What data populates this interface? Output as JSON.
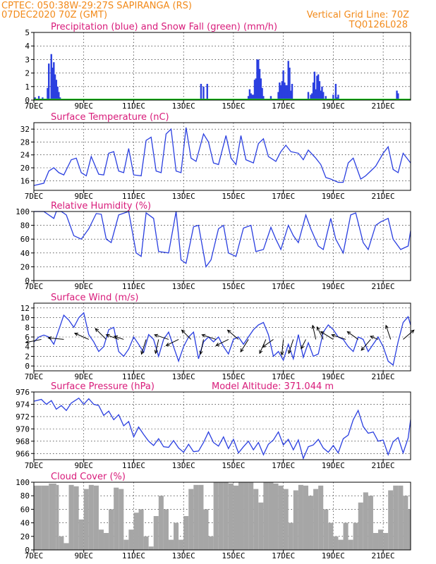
{
  "header": {
    "station": "CPTEC:  050:38W-29:27S  SAPIRANGA (RS)",
    "init": "07DEC2020 70Z (GMT)",
    "vgrid": "Vertical Grid Line: 70Z",
    "code": "TQ0126L028"
  },
  "colors": {
    "line": "#2a3fe0",
    "bar": "#2a3fe0",
    "snow": "#19c219",
    "cloud": "#a6a6a6",
    "title": "#d81b7a",
    "header": "#f28a1a"
  },
  "x_axis": {
    "labels": [
      "7DEC",
      "9DEC",
      "11DEC",
      "13DEC",
      "15DEC",
      "17DEC",
      "19DEC",
      "21DEC"
    ],
    "label_days": [
      0,
      2,
      4,
      6,
      8,
      10,
      12,
      14
    ],
    "range_days": [
      0,
      15.1
    ]
  },
  "chart_data": [
    {
      "type": "bar",
      "title": "Precipitation (blue) and Snow Fall (green) (mm/h)",
      "ylim": [
        0,
        5
      ],
      "yticks": [
        "0",
        "1",
        "2",
        "3",
        "4",
        "5"
      ],
      "series": [
        {
          "name": "Precipitation",
          "x_days": [
            0.05,
            0.1,
            0.2,
            0.35,
            0.55,
            0.6,
            0.7,
            0.75,
            0.8,
            0.85,
            0.9,
            0.95,
            1.0,
            1.05,
            6.7,
            6.8,
            6.95,
            8.6,
            8.65,
            8.7,
            8.75,
            8.8,
            8.85,
            8.9,
            8.95,
            9.0,
            9.05,
            9.1,
            9.15,
            9.2,
            9.5,
            9.8,
            9.85,
            9.9,
            9.95,
            10.0,
            10.05,
            10.1,
            10.15,
            10.2,
            10.25,
            10.3,
            10.35,
            11.0,
            11.1,
            11.15,
            11.2,
            11.25,
            11.3,
            11.35,
            11.4,
            11.45,
            11.5,
            11.55,
            11.6,
            11.7,
            12.0,
            12.1,
            12.15,
            12.2,
            14.55,
            14.6
          ],
          "values": [
            0.2,
            0.1,
            0.3,
            0.2,
            0.9,
            2.7,
            3.4,
            2.4,
            2.8,
            1.9,
            1.5,
            1.0,
            0.6,
            0.2,
            1.2,
            1.0,
            1.2,
            0.3,
            0.8,
            0.5,
            0.4,
            0.4,
            1.5,
            1.6,
            3.0,
            3.0,
            2.3,
            1.6,
            0.9,
            0.3,
            0.3,
            0.6,
            1.3,
            1.1,
            1.4,
            2.2,
            1.3,
            1.1,
            1.1,
            2.9,
            2.4,
            0.7,
            1.2,
            0.6,
            0.4,
            0.5,
            1.3,
            2.1,
            0.8,
            1.8,
            1.9,
            1.4,
            0.7,
            1.0,
            0.6,
            0.3,
            0.4,
            1.2,
            0.2,
            0.4,
            0.7,
            0.5
          ]
        },
        {
          "name": "Snow Fall",
          "x_days": [
            0,
            15.1
          ],
          "values": [
            0,
            0
          ]
        }
      ]
    },
    {
      "type": "line",
      "title": "Surface Temperature (nC)",
      "ylim": [
        13,
        34
      ],
      "yticks": [
        16,
        20,
        24,
        28,
        32
      ],
      "x_days": [
        0,
        0.4,
        0.6,
        0.8,
        1.0,
        1.2,
        1.5,
        1.7,
        1.9,
        2.1,
        2.3,
        2.6,
        2.8,
        3.0,
        3.2,
        3.4,
        3.6,
        3.8,
        4.0,
        4.3,
        4.5,
        4.7,
        4.9,
        5.1,
        5.3,
        5.5,
        5.7,
        5.9,
        6.1,
        6.3,
        6.5,
        6.8,
        7.0,
        7.2,
        7.4,
        7.7,
        7.9,
        8.1,
        8.3,
        8.5,
        8.8,
        9.0,
        9.2,
        9.4,
        9.7,
        9.9,
        10.1,
        10.3,
        10.6,
        10.8,
        11.0,
        11.3,
        11.5,
        11.7,
        11.9,
        12.2,
        12.4,
        12.6,
        12.8,
        13.1,
        13.3,
        13.5,
        13.7,
        14.0,
        14.2,
        14.4,
        14.6,
        14.8,
        15.1
      ],
      "y": [
        14.5,
        15.2,
        19.0,
        20.0,
        18.5,
        17.8,
        22.5,
        23.0,
        18.5,
        17.5,
        23.5,
        18.0,
        17.8,
        24.5,
        25.0,
        19.0,
        18.5,
        26.0,
        17.8,
        17.5,
        28.5,
        29.5,
        19.0,
        18.5,
        30.5,
        32.0,
        19.0,
        18.5,
        32.5,
        23.0,
        22.0,
        30.5,
        28.0,
        21.5,
        21.0,
        30.0,
        23.0,
        21.0,
        30.0,
        22.5,
        21.5,
        27.5,
        29.0,
        23.5,
        22.0,
        25.0,
        27.0,
        25.0,
        24.5,
        22.5,
        25.5,
        23.0,
        21.0,
        17.0,
        16.5,
        15.5,
        15.5,
        21.5,
        23.0,
        16.5,
        17.5,
        19.0,
        20.5,
        24.5,
        26.5,
        19.5,
        18.5,
        24.5,
        21.5
      ]
    },
    {
      "type": "line",
      "title": "Relative Humidity (%)",
      "ylim": [
        0,
        100
      ],
      "yticks": [
        0,
        20,
        40,
        60,
        80,
        100
      ],
      "x_days": [
        0,
        0.4,
        0.8,
        0.9,
        1.1,
        1.3,
        1.6,
        1.9,
        2.2,
        2.5,
        2.7,
        2.9,
        3.1,
        3.4,
        3.8,
        4.1,
        4.3,
        4.5,
        4.8,
        5.0,
        5.4,
        5.7,
        5.9,
        6.1,
        6.4,
        6.6,
        6.9,
        7.1,
        7.4,
        7.6,
        7.8,
        8.1,
        8.4,
        8.7,
        8.9,
        9.2,
        9.5,
        9.7,
        9.9,
        10.2,
        10.4,
        10.6,
        10.9,
        11.1,
        11.4,
        11.6,
        11.9,
        12.1,
        12.4,
        12.7,
        12.9,
        13.2,
        13.4,
        13.7,
        13.9,
        14.2,
        14.4,
        14.7,
        15.0,
        15.1
      ],
      "y": [
        100,
        100,
        90,
        100,
        100,
        95,
        65,
        60,
        75,
        97,
        96,
        60,
        55,
        95,
        100,
        40,
        35,
        98,
        90,
        42,
        40,
        100,
        30,
        25,
        78,
        80,
        20,
        30,
        75,
        80,
        40,
        35,
        76,
        80,
        42,
        45,
        77,
        60,
        45,
        80,
        65,
        55,
        95,
        75,
        50,
        45,
        90,
        60,
        40,
        95,
        98,
        55,
        45,
        80,
        85,
        90,
        60,
        45,
        50,
        72
      ]
    },
    {
      "type": "line",
      "title": "Surface Wind (m/s)",
      "ylim": [
        -1,
        13
      ],
      "yticks": [
        0,
        2,
        4,
        6,
        8,
        10,
        12
      ],
      "x_days": [
        0,
        0.2,
        0.4,
        0.6,
        0.8,
        1.0,
        1.2,
        1.4,
        1.6,
        1.8,
        2.0,
        2.2,
        2.4,
        2.6,
        2.8,
        3.0,
        3.2,
        3.4,
        3.6,
        3.8,
        4.0,
        4.2,
        4.4,
        4.6,
        4.8,
        5.0,
        5.2,
        5.4,
        5.6,
        5.8,
        6.0,
        6.2,
        6.4,
        6.6,
        6.8,
        7.0,
        7.2,
        7.4,
        7.6,
        7.8,
        8.0,
        8.2,
        8.4,
        8.6,
        8.8,
        9.0,
        9.2,
        9.4,
        9.6,
        9.8,
        10.0,
        10.2,
        10.4,
        10.6,
        10.8,
        11.0,
        11.2,
        11.4,
        11.6,
        11.8,
        12.0,
        12.2,
        12.4,
        12.6,
        12.8,
        13.0,
        13.2,
        13.4,
        13.6,
        13.8,
        14.0,
        14.2,
        14.4,
        14.6,
        14.8,
        15.0,
        15.1
      ],
      "y": [
        5.0,
        6.0,
        6.4,
        6.0,
        4.5,
        7.5,
        10.5,
        9.5,
        8.0,
        10.0,
        11.0,
        6.5,
        5.0,
        3.0,
        4.0,
        7.5,
        8.0,
        3.0,
        2.0,
        3.5,
        6.0,
        4.5,
        2.8,
        6.5,
        5.5,
        2.0,
        5.5,
        7.0,
        4.0,
        1.0,
        4.0,
        6.0,
        7.0,
        1.5,
        5.0,
        6.0,
        5.0,
        6.0,
        4.0,
        2.5,
        5.5,
        6.0,
        4.5,
        6.0,
        7.5,
        8.5,
        9.0,
        6.5,
        2.0,
        3.0,
        1.2,
        4.5,
        1.5,
        6.5,
        1.8,
        4.8,
        2.0,
        2.5,
        7.0,
        8.5,
        7.5,
        6.0,
        5.5,
        4.0,
        3.0,
        6.0,
        5.5,
        3.0,
        4.5,
        6.0,
        4.0,
        1.0,
        0.2,
        5.0,
        9.0,
        10.2,
        8.5
      ],
      "vectors": {
        "x_days": [
          0.3,
          1.2,
          2.2,
          2.9,
          3.4,
          3.6,
          4.5,
          5.0,
          5.4,
          5.8,
          6.3,
          6.8,
          7.3,
          7.8,
          8.2,
          8.6,
          9.3,
          9.6,
          10.0,
          10.4,
          10.9,
          11.3,
          11.6,
          12.0,
          12.5,
          13.0,
          13.5,
          13.8,
          14.3,
          14.8
        ],
        "u": [
          -1,
          -1,
          -0.9,
          -0.7,
          -0.8,
          -0.6,
          -0.3,
          -0.2,
          -0.9,
          -0.8,
          -0.6,
          -0.2,
          -0.9,
          -0.8,
          -0.7,
          -0.5,
          -0.4,
          -0.7,
          -0.1,
          -0.3,
          -0.3,
          -0.2,
          -0.4,
          -0.8,
          -0.9,
          -0.7,
          -0.6,
          -0.5,
          -0.3,
          0.7
        ],
        "v": [
          -0.2,
          0.1,
          0.4,
          0.7,
          0.3,
          0.2,
          -0.95,
          -0.9,
          0.3,
          -0.4,
          0.6,
          -0.95,
          0.3,
          -0.4,
          0.6,
          -0.8,
          -0.9,
          -0.5,
          -1,
          -0.9,
          -0.6,
          0.9,
          0.8,
          0.5,
          0.3,
          0.5,
          -0.7,
          0.2,
          0.9,
          0.6
        ]
      }
    },
    {
      "type": "line",
      "title": "Surface Pressure (hPa)",
      "annotation": "Model Altitude: 371.044 m",
      "ylim": [
        965,
        976
      ],
      "yticks": [
        966,
        968,
        970,
        972,
        974,
        976
      ],
      "x_days": [
        0,
        0.3,
        0.5,
        0.7,
        0.9,
        1.1,
        1.3,
        1.5,
        1.8,
        2.0,
        2.2,
        2.4,
        2.6,
        2.8,
        3.0,
        3.2,
        3.4,
        3.6,
        3.8,
        4.0,
        4.2,
        4.4,
        4.6,
        4.8,
        5.0,
        5.2,
        5.4,
        5.6,
        5.8,
        6.0,
        6.2,
        6.4,
        6.6,
        6.8,
        7.0,
        7.2,
        7.4,
        7.6,
        7.8,
        8.0,
        8.2,
        8.4,
        8.6,
        8.8,
        9.0,
        9.2,
        9.4,
        9.6,
        9.8,
        10.0,
        10.2,
        10.4,
        10.6,
        10.8,
        11.0,
        11.2,
        11.4,
        11.6,
        11.8,
        12.0,
        12.2,
        12.4,
        12.6,
        12.8,
        13.0,
        13.2,
        13.4,
        13.6,
        13.8,
        14.0,
        14.2,
        14.4,
        14.6,
        14.8,
        15.0,
        15.1
      ],
      "y": [
        974.5,
        974.8,
        974.0,
        974.6,
        973.2,
        973.8,
        973.0,
        974.2,
        975.0,
        974.0,
        974.9,
        974.0,
        973.8,
        972.2,
        972.9,
        971.5,
        972.3,
        970.5,
        971.2,
        968.7,
        970.3,
        969.1,
        968.0,
        967.3,
        968.4,
        967.1,
        967.0,
        968.1,
        966.9,
        966.2,
        967.5,
        966.3,
        966.4,
        967.8,
        969.5,
        967.8,
        967.2,
        968.7,
        966.8,
        968.3,
        966.1,
        967.1,
        968.0,
        966.6,
        967.8,
        965.8,
        967.5,
        968.2,
        969.5,
        967.4,
        968.3,
        966.6,
        968.2,
        965.2,
        967.1,
        967.4,
        968.3,
        966.9,
        966.2,
        967.3,
        966.1,
        968.4,
        969.0,
        971.5,
        973.0,
        970.4,
        969.3,
        969.5,
        968.0,
        968.2,
        965.8,
        967.9,
        968.6,
        966.1,
        968.5,
        971.5
      ]
    },
    {
      "type": "bar",
      "title": "Cloud Cover (%)",
      "ylim": [
        0,
        100
      ],
      "yticks": [
        0,
        20,
        40,
        60,
        80,
        100
      ],
      "x_days": [
        0,
        0.3,
        0.6,
        0.9,
        1.0,
        1.2,
        1.4,
        1.6,
        1.8,
        2.0,
        2.2,
        2.4,
        2.6,
        2.8,
        3.0,
        3.2,
        3.4,
        3.6,
        3.8,
        4.0,
        4.2,
        4.4,
        4.6,
        4.8,
        5.0,
        5.2,
        5.4,
        5.6,
        5.8,
        6.0,
        6.2,
        6.4,
        6.6,
        6.8,
        7.0,
        7.2,
        7.4,
        7.6,
        7.8,
        8.0,
        8.2,
        8.4,
        8.6,
        8.8,
        9.0,
        9.2,
        9.4,
        9.6,
        9.8,
        10.0,
        10.2,
        10.4,
        10.6,
        10.8,
        11.0,
        11.2,
        11.4,
        11.6,
        11.8,
        12.0,
        12.2,
        12.4,
        12.6,
        12.8,
        13.0,
        13.2,
        13.4,
        13.6,
        13.8,
        14.0,
        14.2,
        14.4,
        14.6,
        14.8,
        15.0
      ],
      "values": [
        95,
        95,
        98,
        96,
        20,
        10,
        96,
        94,
        45,
        90,
        96,
        95,
        30,
        25,
        60,
        92,
        90,
        15,
        30,
        55,
        60,
        20,
        5,
        50,
        80,
        60,
        15,
        40,
        15,
        50,
        90,
        96,
        96,
        60,
        20,
        100,
        100,
        100,
        98,
        95,
        100,
        100,
        100,
        90,
        70,
        100,
        100,
        98,
        95,
        90,
        40,
        88,
        96,
        95,
        80,
        90,
        95,
        60,
        40,
        20,
        15,
        40,
        15,
        40,
        70,
        85,
        80,
        25,
        30,
        25,
        88,
        95,
        95,
        80,
        60
      ]
    }
  ]
}
